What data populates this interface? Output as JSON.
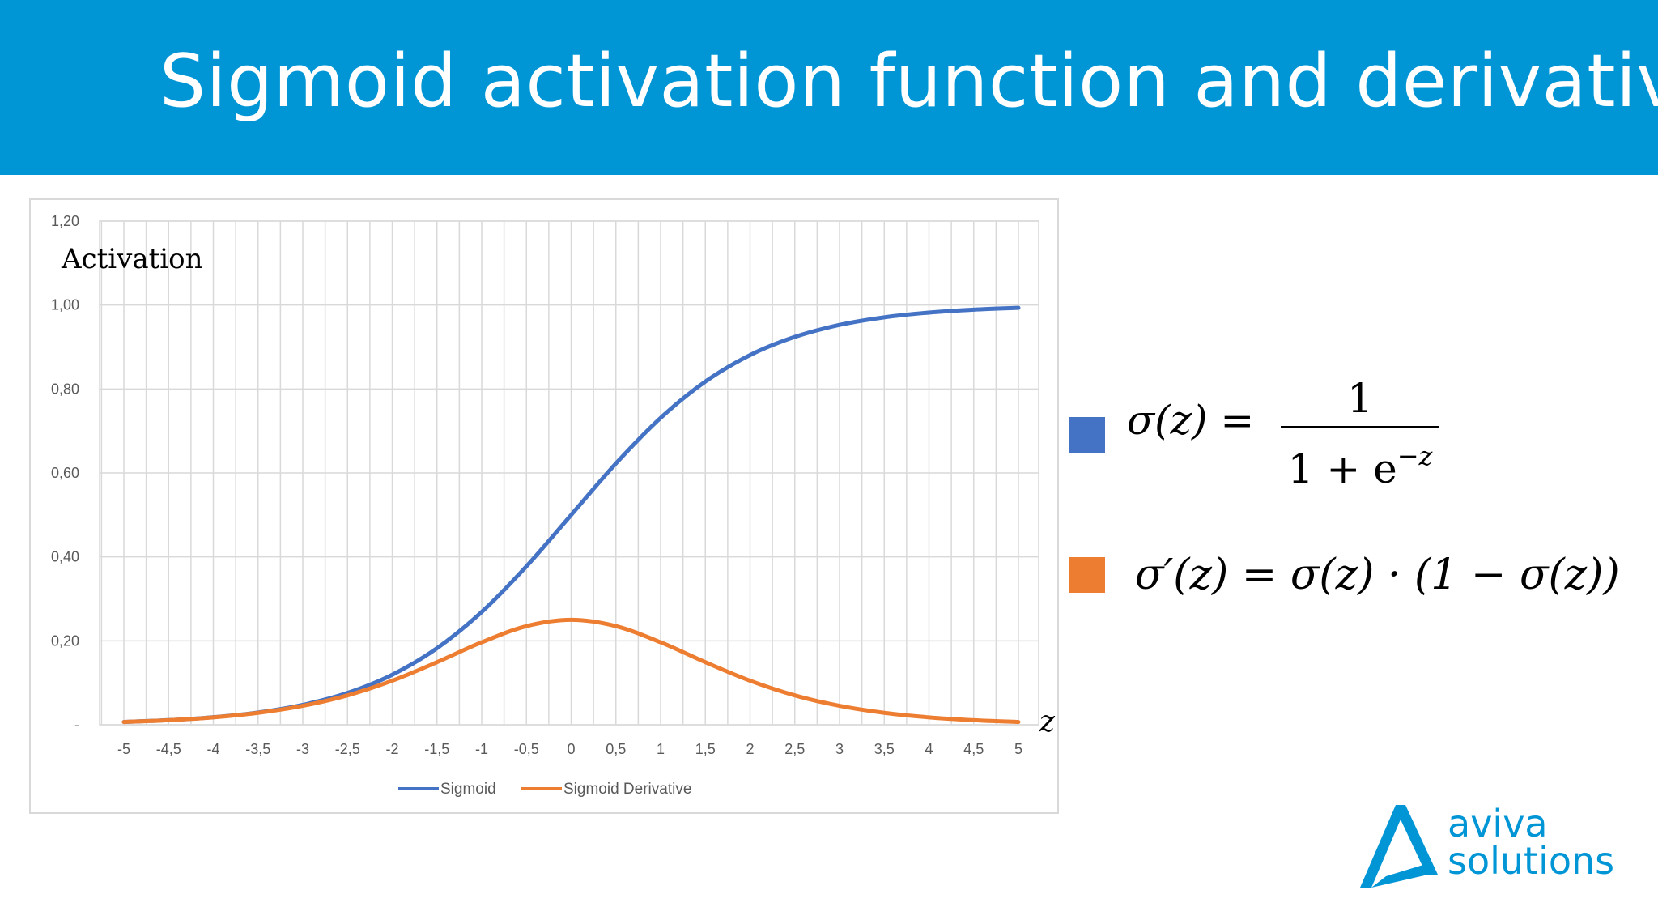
{
  "header": {
    "title": "Sigmoid activation function and derivative",
    "background_color": "#0096d6"
  },
  "chart_data": {
    "type": "line",
    "x": [
      -5,
      -4.5,
      -4,
      -3.5,
      -3,
      -2.5,
      -2,
      -1.5,
      -1,
      -0.5,
      0,
      0.5,
      1,
      1.5,
      2,
      2.5,
      3,
      3.5,
      4,
      4.5,
      5
    ],
    "x_tick_labels": [
      "-5",
      "-4,5",
      "-4",
      "-3,5",
      "-3",
      "-2,5",
      "-2",
      "-1,5",
      "-1",
      "-0,5",
      "0",
      "0,5",
      "1",
      "1,5",
      "2",
      "2,5",
      "3",
      "3,5",
      "4",
      "4,5",
      "5"
    ],
    "y_tick_values": [
      0,
      0.2,
      0.4,
      0.6,
      0.8,
      1.0,
      1.2
    ],
    "y_tick_labels": [
      "-",
      "0,20",
      "0,40",
      "0,60",
      "0,80",
      "1,00",
      "1,20"
    ],
    "series": [
      {
        "name": "Sigmoid",
        "color": "#4472c4",
        "values": [
          0.0067,
          0.011,
          0.018,
          0.0293,
          0.0474,
          0.0759,
          0.1192,
          0.1824,
          0.2689,
          0.3775,
          0.5,
          0.6225,
          0.7311,
          0.8176,
          0.8808,
          0.9241,
          0.9526,
          0.9707,
          0.982,
          0.989,
          0.9933
        ]
      },
      {
        "name": "Sigmoid Derivative",
        "color": "#ed7d31",
        "values": [
          0.0066,
          0.0109,
          0.0177,
          0.0285,
          0.0452,
          0.0701,
          0.105,
          0.1491,
          0.1966,
          0.235,
          0.25,
          0.235,
          0.1966,
          0.1491,
          0.105,
          0.0701,
          0.0452,
          0.0285,
          0.0177,
          0.0109,
          0.0066
        ]
      }
    ],
    "ylabel": "Activation",
    "xlabel": "z",
    "ylim": [
      0,
      1.2
    ],
    "xlim": [
      -5,
      5
    ],
    "grid": true,
    "legend_position": "bottom"
  },
  "legend": {
    "sigmoid_label": "Sigmoid",
    "derivative_label": "Sigmoid Derivative"
  },
  "formulas": {
    "sigmoid": {
      "lhs": "σ(z) =",
      "numerator": "1",
      "denominator_base": "1 + e",
      "denominator_exp": "−z",
      "color": "#4472c4"
    },
    "derivative": {
      "text": "σ′(z) = σ(z) · (1 − σ(z))",
      "color": "#ed7d31"
    }
  },
  "logo": {
    "line1": "aviva",
    "line2": "solutions",
    "color": "#0096d6"
  }
}
